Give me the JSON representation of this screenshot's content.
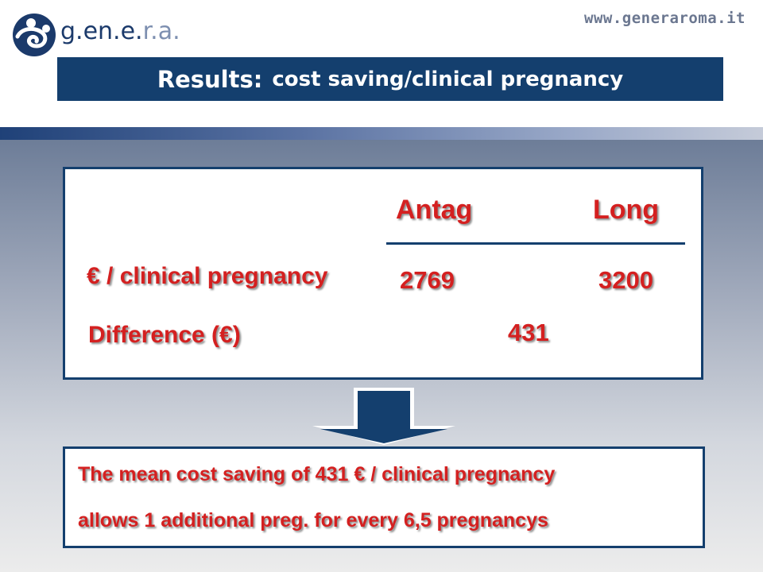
{
  "header": {
    "logo_text_main": "g.en.e.",
    "logo_text_dim": "r.a.",
    "website": "www.generaroma.it",
    "title_main": "Results:",
    "title_sub": "cost saving/clinical pregnancy"
  },
  "table": {
    "columns": [
      "Antag",
      "Long"
    ],
    "row_label": "€ / clinical  pregnancy",
    "row_values": [
      "2769",
      "3200"
    ],
    "difference_label": "Difference  (€)",
    "difference_value": "431"
  },
  "note": {
    "line1": "The mean cost saving of 431 € / clinical pregnancy",
    "line2": "allows 1 additional preg. for every 6,5 pregnancys"
  },
  "colors": {
    "navy": "#143f6e",
    "red_text": "#d42020"
  },
  "icons": {
    "logo": "genera-logo-icon",
    "arrow": "down-arrow-icon"
  }
}
